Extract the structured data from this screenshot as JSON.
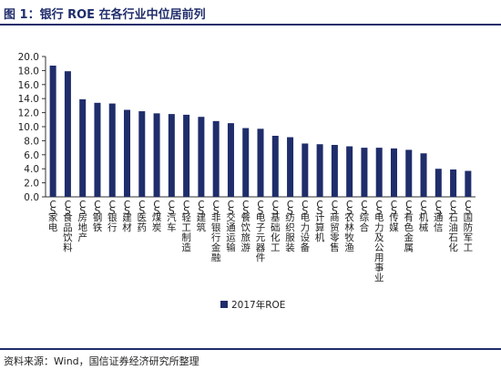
{
  "header": {
    "title": "图 1：银行 ROE 在各行业中位居前列"
  },
  "footer": {
    "source": "资料来源：Wind，国信证券经济研究所整理"
  },
  "colors": {
    "bar": "#1f2d6b",
    "rule": "#1f2d6b",
    "axis": "#333333"
  },
  "chart_data": {
    "type": "bar",
    "title": "图 1：银行 ROE 在各行业中位居前列",
    "xlabel": "",
    "ylabel": "",
    "ylim": [
      0,
      20
    ],
    "yticks": [
      "0.0",
      "2.0",
      "4.0",
      "6.0",
      "8.0",
      "10.0",
      "12.0",
      "14.0",
      "16.0",
      "18.0",
      "20.0"
    ],
    "grid": false,
    "legend_position": "bottom-left",
    "categories": [
      "CS家电",
      "CS食品饮料",
      "CS房地产",
      "CS钢铁",
      "CS银行",
      "CS建材",
      "CS医药",
      "CS煤炭",
      "CS汽车",
      "CS轻工制造",
      "CS建筑",
      "CS非银行金融",
      "CS交通运输",
      "CS餐饮旅游",
      "CS电子元器件",
      "CS基础化工",
      "CS纺织服装",
      "CS电力设备",
      "CS计算机",
      "CS商贸零售",
      "CS农林牧渔",
      "CS综合",
      "CS电力及公用事业",
      "CS传媒",
      "CS有色金属",
      "CS机械",
      "CS通信",
      "CS石油石化",
      "CS国防军工"
    ],
    "series": [
      {
        "name": "2017年ROE",
        "values": [
          18.7,
          17.9,
          13.9,
          13.4,
          13.3,
          12.4,
          12.2,
          11.9,
          11.8,
          11.7,
          11.4,
          10.8,
          10.5,
          9.8,
          9.7,
          8.7,
          8.5,
          7.6,
          7.5,
          7.4,
          7.2,
          7.0,
          7.0,
          6.9,
          6.7,
          6.2,
          4.0,
          3.9,
          3.7
        ]
      }
    ]
  }
}
